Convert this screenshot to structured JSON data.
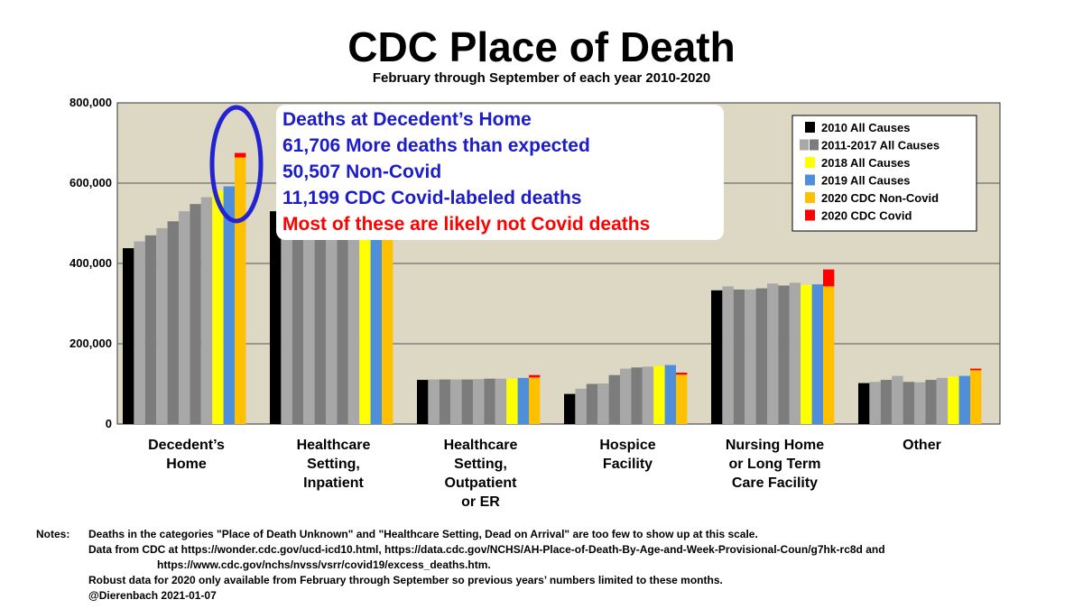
{
  "title": "CDC Place of Death",
  "subtitle": "February through September of each year 2010-2020",
  "annotation": {
    "lines": [
      "Deaths at Decedent’s Home",
      "61,706 More deaths than expected",
      "50,507 Non-Covid",
      "11,199 CDC Covid-labeled deaths",
      "Most of these are likely not Covid deaths"
    ],
    "colors": [
      "#1c1cc8",
      "#1c1cc8",
      "#1c1cc8",
      "#1c1cc8",
      "#ff0000"
    ],
    "highlight_color": "#2323d2"
  },
  "legend": [
    {
      "label": "2010 All Causes",
      "colors": [
        "#000000"
      ]
    },
    {
      "label": "2011-2017 All Causes",
      "colors": [
        "#a8a8a8",
        "#7c7c7c"
      ]
    },
    {
      "label": "2018 All Causes",
      "colors": [
        "#ffff00"
      ]
    },
    {
      "label": "2019 All Causes",
      "colors": [
        "#4f8fd9"
      ]
    },
    {
      "label": "2020 CDC Non-Covid",
      "colors": [
        "#ffc000"
      ]
    },
    {
      "label": "2020 CDC Covid",
      "colors": [
        "#ff0000"
      ]
    }
  ],
  "chart_data": {
    "type": "bar",
    "stacked_last_bar": true,
    "categories": [
      "Decedent’s\nHome",
      "Healthcare\nSetting,\nInpatient",
      "Healthcare\nSetting,\nOutpatient\nor ER",
      "Hospice\nFacility",
      "Nursing Home\nor Long Term\nCare Facility",
      "Other"
    ],
    "series": [
      {
        "name": "2010 All Causes",
        "color": "#000000",
        "values": [
          438000,
          530000,
          110000,
          75000,
          333000,
          102000
        ]
      },
      {
        "name": "2011",
        "color": "#a8a8a8",
        "values": [
          455000,
          525000,
          111000,
          88000,
          343000,
          105000
        ]
      },
      {
        "name": "2012",
        "color": "#7c7c7c",
        "values": [
          470000,
          520000,
          111000,
          100000,
          335000,
          110000
        ]
      },
      {
        "name": "2013",
        "color": "#a8a8a8",
        "values": [
          488000,
          515000,
          111000,
          101000,
          335000,
          120000
        ]
      },
      {
        "name": "2014",
        "color": "#7c7c7c",
        "values": [
          505000,
          512000,
          111000,
          122000,
          338000,
          105000
        ]
      },
      {
        "name": "2015",
        "color": "#a8a8a8",
        "values": [
          530000,
          510000,
          112000,
          138000,
          350000,
          104000
        ]
      },
      {
        "name": "2016",
        "color": "#7c7c7c",
        "values": [
          548000,
          510000,
          113000,
          141000,
          345000,
          110000
        ]
      },
      {
        "name": "2017",
        "color": "#a8a8a8",
        "values": [
          565000,
          512000,
          113000,
          143000,
          352000,
          115000
        ]
      },
      {
        "name": "2018 All Causes",
        "color": "#ffff00",
        "values": [
          582000,
          505000,
          113000,
          145000,
          347000,
          118000
        ]
      },
      {
        "name": "2019 All Causes",
        "color": "#4f8fd9",
        "values": [
          592000,
          502000,
          115000,
          147000,
          348000,
          120000
        ]
      },
      {
        "name": "2020 CDC Non-Covid",
        "color": "#ffc000",
        "values": [
          664000,
          500000,
          116000,
          123000,
          343000,
          134000
        ]
      },
      {
        "name": "2020 CDC Covid",
        "color": "#ff0000",
        "values": [
          11199,
          0,
          6000,
          5000,
          42000,
          4000
        ]
      }
    ],
    "yticks": [
      "800,000",
      "600,000",
      "400,000",
      "200,000",
      "0"
    ],
    "ylim": [
      0,
      800000
    ],
    "grid": true,
    "legend_position": "top-right",
    "plot_background": "#ddd8c4"
  },
  "notes": {
    "label": "Notes:",
    "lines": [
      "Deaths in the categories \"Place of Death Unknown\" and \"Healthcare Setting, Dead on Arrival\" are too few to show up at this scale.",
      "Data from CDC at https://wonder.cdc.gov/ucd-icd10.html, https://data.cdc.gov/NCHS/AH-Place-of-Death-By-Age-and-Week-Provisional-Coun/g7hk-rc8d and",
      "https://www.cdc.gov/nchs/nvss/vsrr/covid19/excess_deaths.htm.",
      "Robust data for 2020 only available from February through September so previous years’ numbers limited to these months.",
      "@Dierenbach 2021-01-07"
    ]
  }
}
